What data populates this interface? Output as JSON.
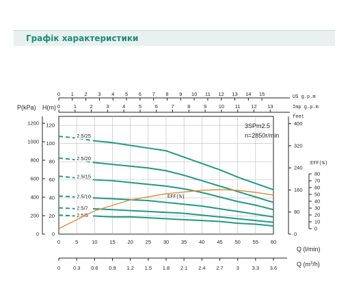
{
  "header": {
    "title": "Графік характеристики"
  },
  "chart_data": {
    "type": "line",
    "model": "3SPm2.5",
    "speed": "n=2850r/min",
    "q_lmin": {
      "label": "Q (l/min)",
      "ticks": [
        0,
        5,
        10,
        15,
        20,
        25,
        30,
        35,
        40,
        45,
        50,
        55,
        60
      ],
      "range": [
        0,
        60
      ]
    },
    "q_m3h": {
      "label": "Q (m³/h)",
      "label_main": "Q (m",
      "label_sup": "3",
      "label_end": "/h)",
      "ticks": [
        "0",
        "0.3",
        "0.6",
        "0.9",
        "1.2",
        "1.5",
        "1.8",
        "2.1",
        "2.4",
        "2.7",
        "3",
        "3.3",
        "3.6"
      ]
    },
    "us_gpm": {
      "label": "US g.p.m",
      "ticks": [
        0,
        1,
        2,
        3,
        4,
        5,
        6,
        7,
        8,
        9,
        10,
        11,
        12,
        13,
        14,
        15
      ]
    },
    "imp_gpm": {
      "label": "Imp g.p.m",
      "ticks": [
        0,
        1,
        2,
        3,
        4,
        5,
        6,
        7,
        8,
        9,
        10,
        11,
        12,
        13
      ]
    },
    "pressure_kpa": {
      "label": "P(kPa)",
      "ticks": [
        0,
        200,
        400,
        600,
        800,
        1000,
        1200
      ]
    },
    "head_m": {
      "label": "H(m)",
      "ticks": [
        0,
        20,
        40,
        60,
        80,
        100,
        120
      ],
      "range": [
        0,
        130
      ]
    },
    "head_ft": {
      "label": "feet",
      "ticks": [
        0,
        80,
        160,
        240,
        320,
        400
      ]
    },
    "eff_axis": {
      "label": "EFF(%)",
      "ticks": [
        0,
        10,
        20,
        30,
        40,
        50,
        60,
        70,
        80
      ]
    },
    "grid": true,
    "series": [
      {
        "name": "2.5/25",
        "x": [
          0,
          5,
          10,
          15,
          20,
          25,
          30,
          35,
          40,
          45,
          50,
          55,
          60
        ],
        "y": [
          108,
          106,
          103,
          101,
          98,
          95,
          92,
          85,
          78,
          71,
          63,
          56,
          49
        ]
      },
      {
        "name": "2.5/20",
        "x": [
          0,
          5,
          10,
          15,
          20,
          25,
          30,
          35,
          40,
          45,
          50,
          55,
          60
        ],
        "y": [
          84,
          82,
          79,
          77,
          75,
          73,
          70,
          65,
          59,
          53,
          47,
          41,
          35
        ]
      },
      {
        "name": "2.5/15",
        "x": [
          0,
          5,
          10,
          15,
          20,
          25,
          30,
          35,
          40,
          45,
          50,
          55,
          60
        ],
        "y": [
          64,
          62,
          60,
          59,
          57,
          55,
          53,
          50,
          46,
          41,
          36,
          32,
          27
        ]
      },
      {
        "name": "2.5/10",
        "x": [
          0,
          5,
          10,
          15,
          20,
          25,
          30,
          35,
          40,
          45,
          50,
          55,
          60
        ],
        "y": [
          42,
          41,
          40,
          39,
          38,
          37,
          35,
          33,
          31,
          28,
          25,
          22,
          19
        ]
      },
      {
        "name": "2.5/7",
        "x": [
          0,
          5,
          10,
          15,
          20,
          25,
          30,
          35,
          40,
          45,
          50,
          55,
          60
        ],
        "y": [
          29,
          28,
          28,
          27,
          26,
          25,
          24,
          23,
          21,
          19,
          17,
          15,
          13
        ]
      },
      {
        "name": "2.5/5",
        "x": [
          0,
          5,
          10,
          15,
          20,
          25,
          30,
          35,
          40,
          45,
          50,
          55,
          60
        ],
        "y": [
          21,
          20,
          20,
          19,
          19,
          18,
          17,
          16,
          15,
          14,
          12,
          11,
          9
        ]
      }
    ],
    "efficiency": {
      "name": "EFF(%)",
      "x": [
        0,
        10,
        20,
        30,
        40,
        45,
        50,
        55,
        60
      ],
      "y": [
        0,
        26,
        42,
        51,
        56,
        57,
        56,
        53,
        49
      ]
    },
    "colors": {
      "curve": "#1e9a82",
      "eff": "#e08a3c",
      "grid": "#bbbbbb",
      "axis": "#222222",
      "header_text": "#1e8c79",
      "header_bg": "#e8f1ef"
    }
  }
}
